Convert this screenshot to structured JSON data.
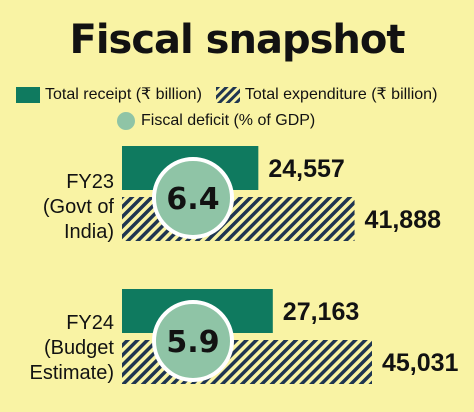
{
  "title": "Fiscal snapshot",
  "legend": {
    "receipt": "Total receipt (₹ billion)",
    "expenditure": "Total expenditure (₹ billion)",
    "deficit": "Fiscal deficit (% of GDP)"
  },
  "colors": {
    "background": "#f9f3a4",
    "receipt": "#0f7a5f",
    "expenditure_stripe": "#1f3550",
    "deficit_circle": "#8fc4a6",
    "deficit_border": "#ffffff"
  },
  "chart_data": {
    "type": "bar",
    "orientation": "horizontal",
    "title": "Fiscal snapshot",
    "categories": [
      {
        "lines": [
          "FY23",
          "(Govt of",
          "India)"
        ]
      },
      {
        "lines": [
          "FY24",
          "(Budget",
          "Estimate)"
        ]
      }
    ],
    "series": [
      {
        "name": "Total receipt (₹ billion)",
        "values": [
          24557,
          27163
        ],
        "labels": [
          "24,557",
          "27,163"
        ]
      },
      {
        "name": "Total expenditure (₹ billion)",
        "values": [
          41888,
          45031
        ],
        "labels": [
          "41,888",
          "45,031"
        ]
      },
      {
        "name": "Fiscal deficit (% of GDP)",
        "values": [
          6.4,
          5.9
        ],
        "labels": [
          "6.4",
          "5.9"
        ]
      }
    ]
  }
}
